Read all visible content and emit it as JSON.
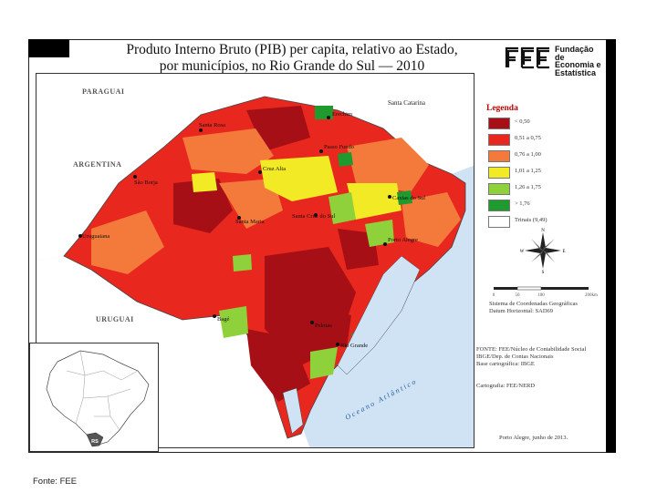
{
  "title": {
    "line1": "Produto Interno Bruto (PIB) per capita, relativo ao Estado,",
    "line2": "por municípios, no Rio Grande do Sul — 2010"
  },
  "logo": {
    "line1": "Fundação de",
    "line2": "Economia e",
    "line3": "Estatística"
  },
  "legend": {
    "title": "Legenda",
    "items": [
      {
        "label": "< 0,50",
        "color": "#a50f15"
      },
      {
        "label": "0,51 a 0,75",
        "color": "#e8281e"
      },
      {
        "label": "0,76 a 1,00",
        "color": "#f47a3c"
      },
      {
        "label": "1,01 a 1,25",
        "color": "#f2ea25"
      },
      {
        "label": "1,26 a 1,75",
        "color": "#8fd13a"
      },
      {
        "label": "> 1,76",
        "color": "#1e9a2e"
      },
      {
        "label": "Trinais (9,49)",
        "color": "#ffffff"
      }
    ]
  },
  "map_labels": {
    "paraguai": "PARAGUAI",
    "argentina": "ARGENTINA",
    "uruguai": "URUGUAI",
    "santa_catarina": "Santa Catarina",
    "oceano": "Oceano Atlântico",
    "cities": {
      "erechim": "Erechim",
      "santa_rosa": "Santa Rosa",
      "passo_fundo": "Passo Fundo",
      "cruz_alta": "Cruz Alta",
      "sao_borja": "São Borja",
      "caxias": "Caxias do Sul",
      "santa_cruz": "Santa Cruz do Sul",
      "santa_maria": "Santa Maria",
      "uruguaiana": "Uruguaiana",
      "porto_alegre": "Porto Alegre",
      "bage": "Bagé",
      "pelotas": "Pelotas",
      "rio_grande": "Rio Grande"
    },
    "inset_state": "RS"
  },
  "scale": {
    "ticks": [
      "0",
      "50",
      "100",
      "200km"
    ],
    "line1": "Sistema de Coordenadas Geográficas",
    "line2": "Datum Horizontal: SAD69"
  },
  "credits": {
    "line1": "FONTE: FEE/Núcleo de Contabilidade Social",
    "line2": "IBGE/Dep. de Contas Nacionais",
    "line3": "Base cartográfica: IBGE",
    "cartography": "Cartografia: FEE/NERD",
    "place_date": "Porto Alegre, junho de 2013."
  },
  "compass_letters": {
    "n": "N",
    "s": "S",
    "e": "E",
    "w": "W"
  },
  "footer": {
    "source": "Fonte: FEE"
  }
}
